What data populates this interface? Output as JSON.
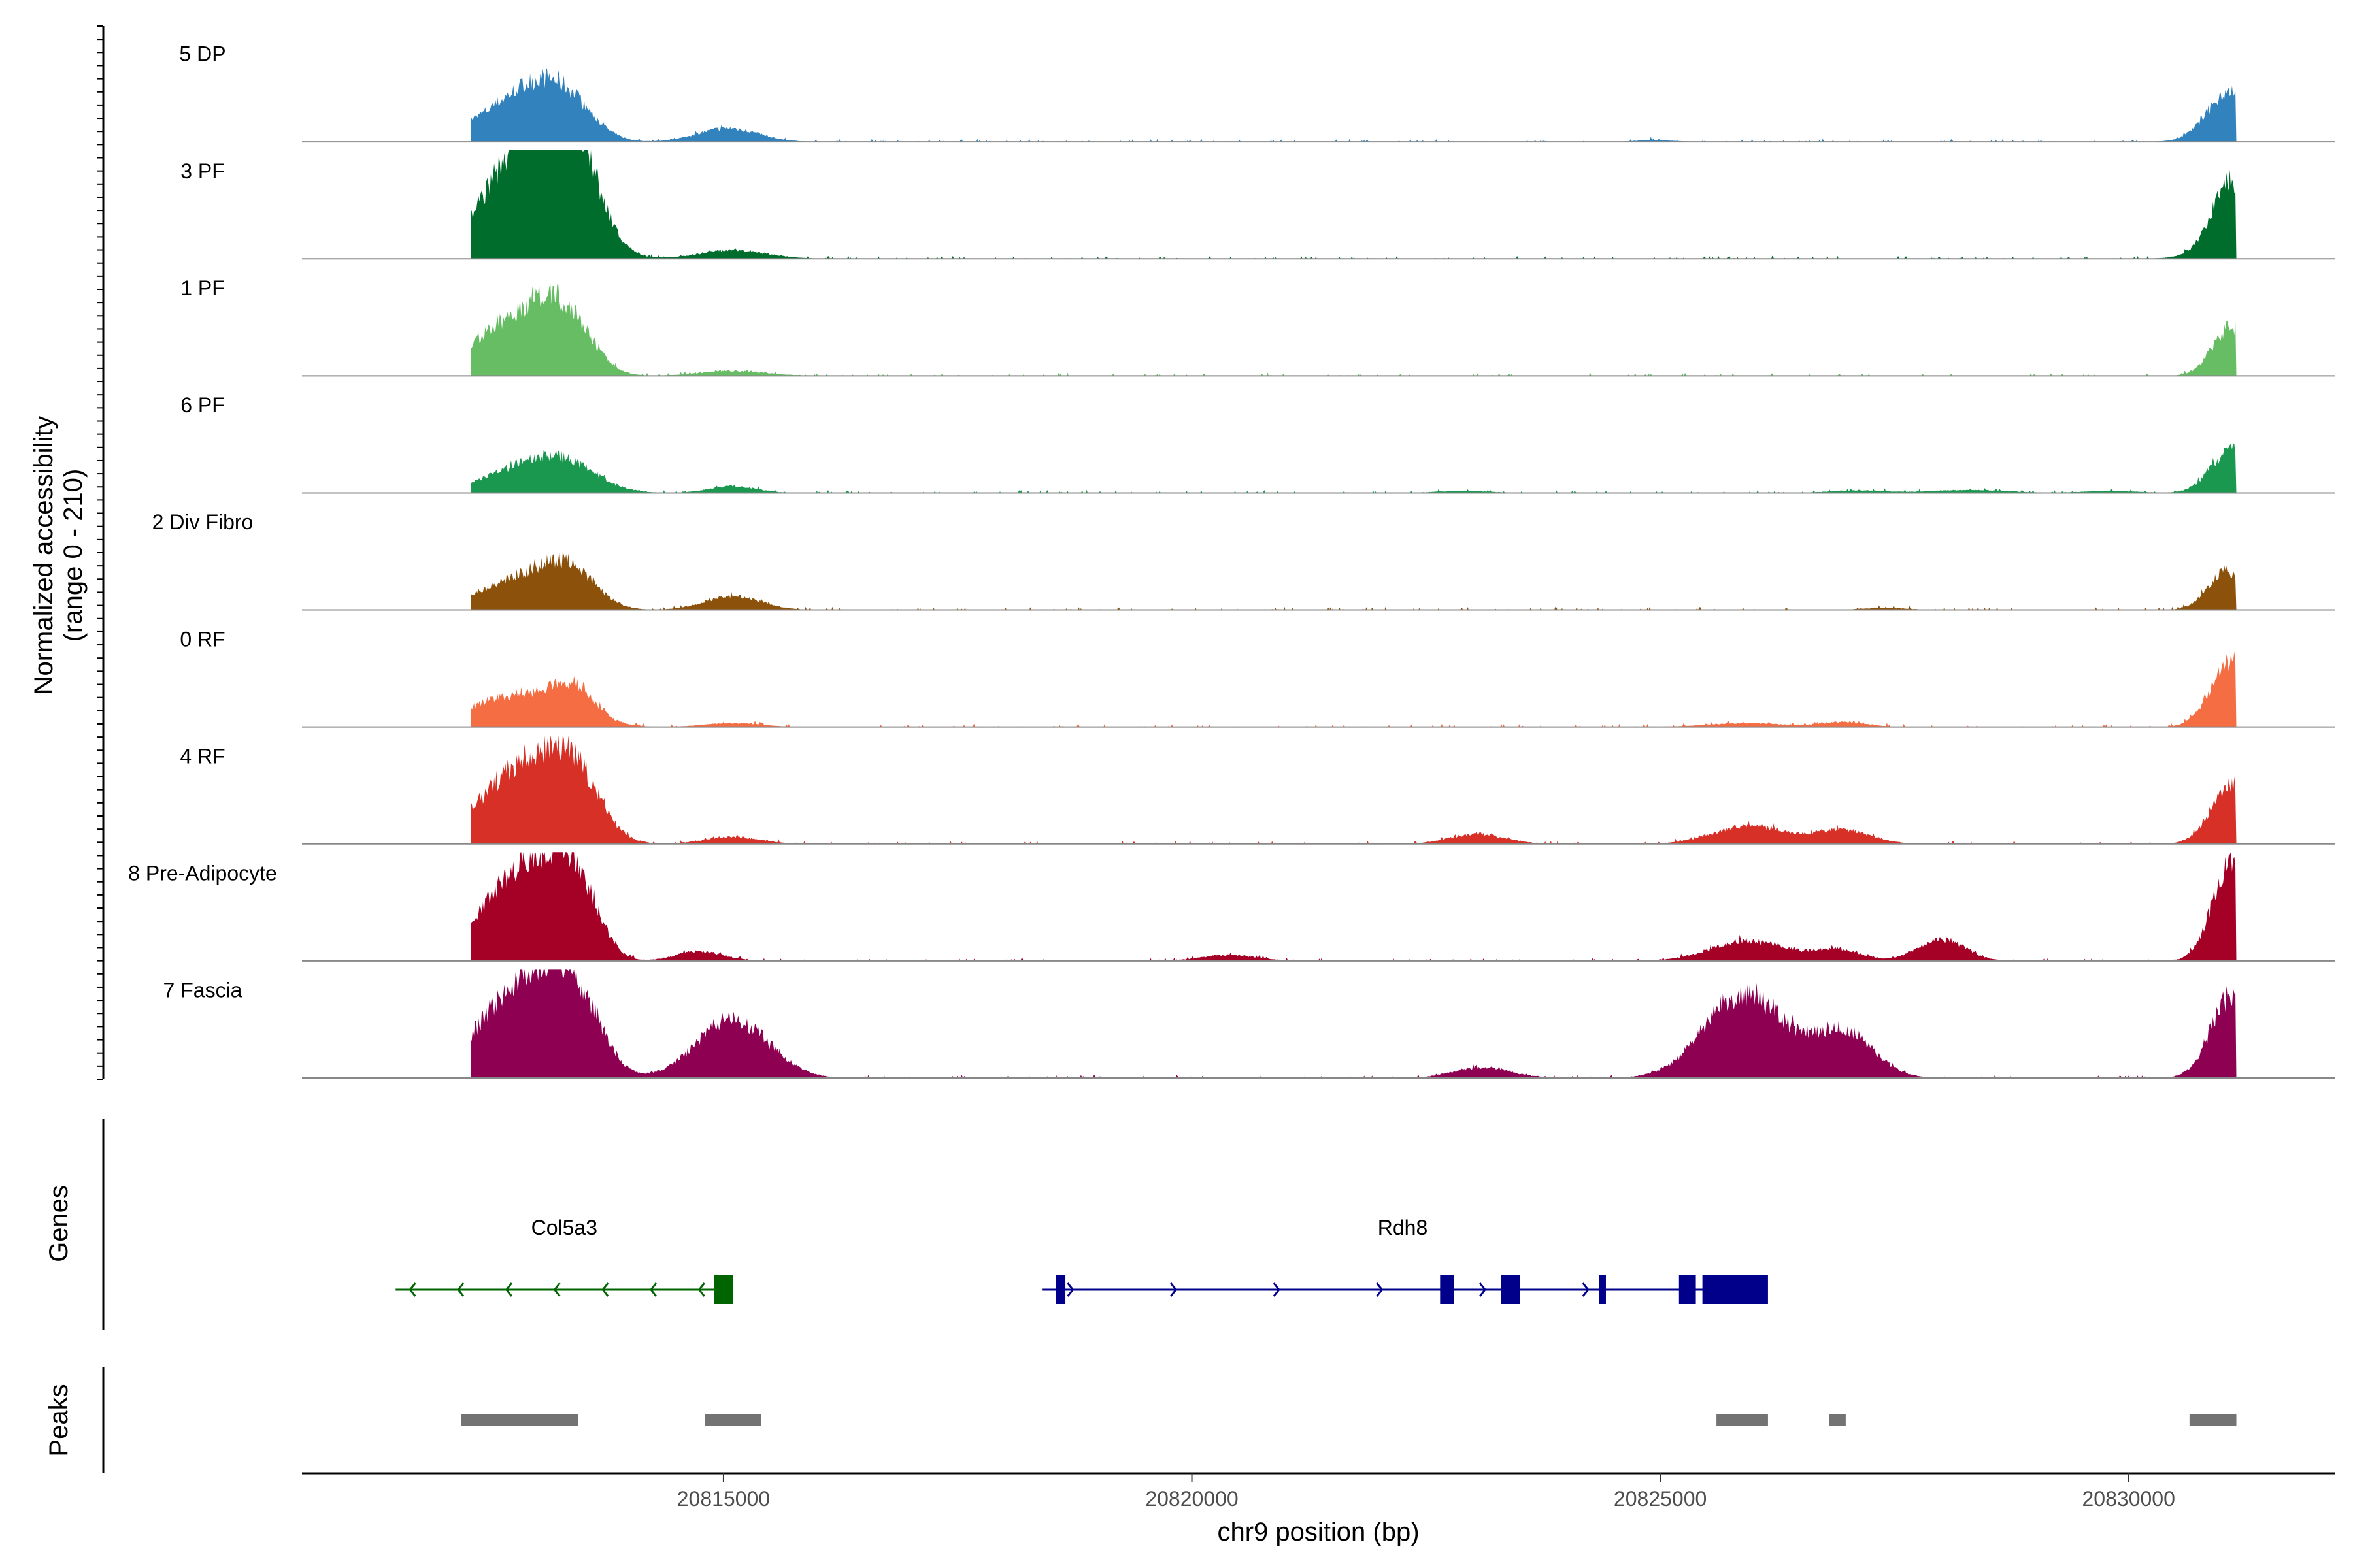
{
  "chart_data": {
    "type": "area",
    "region": "chr9",
    "xlabel": "chr9 position (bp)",
    "ylabel": [
      "Normalized accessibility",
      "(range 0 - 210)"
    ],
    "ylim": [
      0,
      210
    ],
    "xlim": [
      20810500,
      20832200
    ],
    "x_ticks": [
      {
        "value": 20815000,
        "label": "20815000"
      },
      {
        "value": 20820000,
        "label": "20820000"
      },
      {
        "value": 20825000,
        "label": "20825000"
      },
      {
        "value": 20830000,
        "label": "20830000"
      }
    ],
    "tracks": [
      {
        "name": "5 DP",
        "color": "#3182bd",
        "max": 210,
        "peaks": [
          [
            20812700,
            60,
            450
          ],
          [
            20813000,
            52,
            300
          ],
          [
            20813350,
            62,
            280
          ],
          [
            20815050,
            28,
            320
          ],
          [
            20824950,
            4,
            200
          ],
          [
            20830900,
            14,
            250
          ],
          [
            20831100,
            95,
            220
          ]
        ]
      },
      {
        "name": "3 PF",
        "color": "#006d2c",
        "max": 210,
        "peaks": [
          [
            20812800,
            168,
            420
          ],
          [
            20813200,
            150,
            350
          ],
          [
            20813400,
            118,
            260
          ],
          [
            20815100,
            18,
            350
          ],
          [
            20830950,
            12,
            300
          ],
          [
            20831100,
            150,
            200
          ]
        ]
      },
      {
        "name": "1 PF",
        "color": "#66bd63",
        "max": 210,
        "peaks": [
          [
            20812700,
            95,
            420
          ],
          [
            20813150,
            78,
            300
          ],
          [
            20813400,
            55,
            250
          ],
          [
            20815100,
            10,
            350
          ],
          [
            20831100,
            100,
            200
          ]
        ]
      },
      {
        "name": "6 PF",
        "color": "#1a9850",
        "max": 210,
        "peaks": [
          [
            20812800,
            42,
            450
          ],
          [
            20813300,
            50,
            350
          ],
          [
            20815100,
            14,
            250
          ],
          [
            20822900,
            4,
            300
          ],
          [
            20827100,
            5,
            300
          ],
          [
            20828300,
            6,
            400
          ],
          [
            20829800,
            4,
            300
          ],
          [
            20831100,
            88,
            220
          ]
        ]
      },
      {
        "name": "2 Div Fibro",
        "color": "#8c510a",
        "max": 210,
        "peaks": [
          [
            20812800,
            62,
            420
          ],
          [
            20813350,
            72,
            280
          ],
          [
            20815100,
            28,
            300
          ],
          [
            20827400,
            4,
            250
          ],
          [
            20831050,
            80,
            200
          ]
        ]
      },
      {
        "name": "0 RF",
        "color": "#f46d43",
        "max": 210,
        "peaks": [
          [
            20812500,
            38,
            400
          ],
          [
            20813100,
            48,
            400
          ],
          [
            20813400,
            52,
            220
          ],
          [
            20815100,
            8,
            300
          ],
          [
            20825900,
            8,
            400
          ],
          [
            20826950,
            10,
            250
          ],
          [
            20831100,
            135,
            220
          ]
        ]
      },
      {
        "name": "4 RF",
        "color": "#d73027",
        "max": 210,
        "peaks": [
          [
            20812650,
            95,
            400
          ],
          [
            20813150,
            120,
            360
          ],
          [
            20813450,
            75,
            260
          ],
          [
            20815100,
            14,
            300
          ],
          [
            20823050,
            20,
            300
          ],
          [
            20825950,
            38,
            380
          ],
          [
            20826950,
            28,
            300
          ],
          [
            20831100,
            120,
            220
          ]
        ]
      },
      {
        "name": "8 Pre-Adipocyte",
        "color": "#a50026",
        "max": 210,
        "peaks": [
          [
            20812600,
            110,
            300
          ],
          [
            20813100,
            170,
            300
          ],
          [
            20813450,
            115,
            230
          ],
          [
            20814750,
            20,
            250
          ],
          [
            20820400,
            12,
            300
          ],
          [
            20825950,
            42,
            400
          ],
          [
            20826900,
            22,
            250
          ],
          [
            20828000,
            45,
            250
          ],
          [
            20831100,
            210,
            200
          ]
        ]
      },
      {
        "name": "7 Fascia",
        "color": "#8e0152",
        "max": 210,
        "peaks": [
          [
            20812700,
            130,
            400
          ],
          [
            20813150,
            130,
            350
          ],
          [
            20813450,
            95,
            260
          ],
          [
            20815100,
            120,
            380
          ],
          [
            20823100,
            22,
            300
          ],
          [
            20825900,
            175,
            420
          ],
          [
            20826950,
            95,
            320
          ],
          [
            20831100,
            170,
            220
          ]
        ]
      }
    ],
    "genes": {
      "label": "Genes",
      "items": [
        {
          "name": "Col5a3",
          "strand": "-",
          "color": "#006400",
          "start": 20811500,
          "end": 20815100,
          "exons": [
            [
              20814900,
              20815100
            ]
          ]
        },
        {
          "name": "Rdh8",
          "strand": "+",
          "color": "#00008b",
          "start": 20818400,
          "end": 20826100,
          "exons": [
            [
              20818550,
              20818650
            ],
            [
              20822650,
              20822800
            ],
            [
              20823300,
              20823500
            ],
            [
              20824350,
              20824420
            ],
            [
              20825200,
              20825380
            ],
            [
              20825450,
              20826150
            ]
          ]
        }
      ]
    },
    "peaks": {
      "label": "Peaks",
      "color": "#737373",
      "regions": [
        [
          20812200,
          20813450
        ],
        [
          20814800,
          20815400
        ],
        [
          20825600,
          20826150
        ],
        [
          20826800,
          20826980
        ],
        [
          20830650,
          20831150
        ]
      ]
    }
  }
}
